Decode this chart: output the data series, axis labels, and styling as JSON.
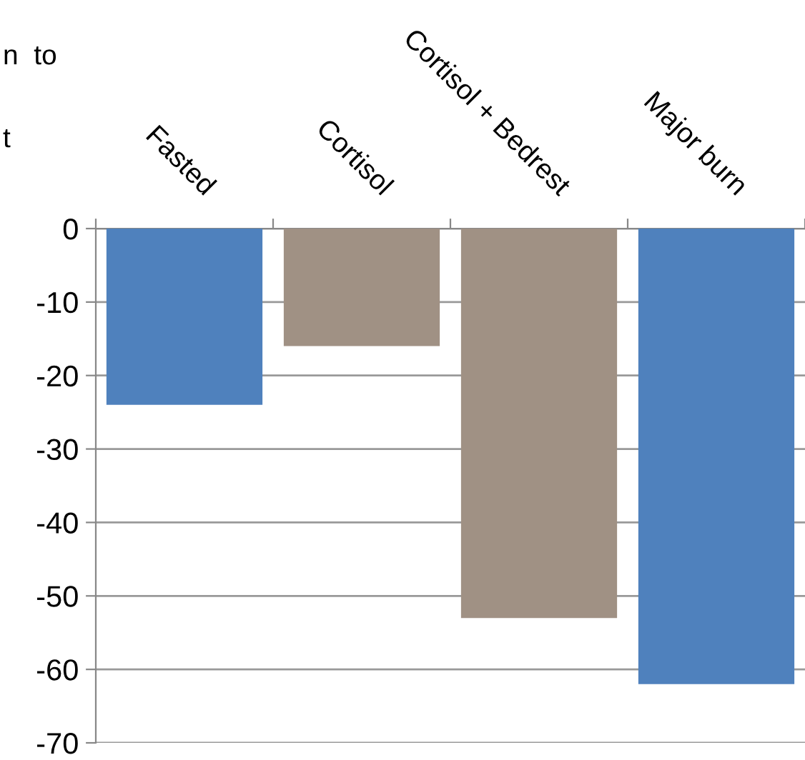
{
  "chart_data": {
    "type": "bar",
    "categories": [
      "Fasted",
      "Cortisol",
      "Cortisol + Bedrest",
      "Major burn"
    ],
    "values": [
      -24,
      -16,
      -53,
      -62
    ],
    "colors": [
      "#4f81bd",
      "#a09184",
      "#a09184",
      "#4f81bd"
    ],
    "ylim": [
      -70,
      0
    ],
    "yticks": [
      -70,
      -60,
      -50,
      -40,
      -30,
      -20,
      -10,
      0
    ],
    "grid": "y",
    "legend": false,
    "annotations": [
      "n  to",
      "t"
    ]
  }
}
